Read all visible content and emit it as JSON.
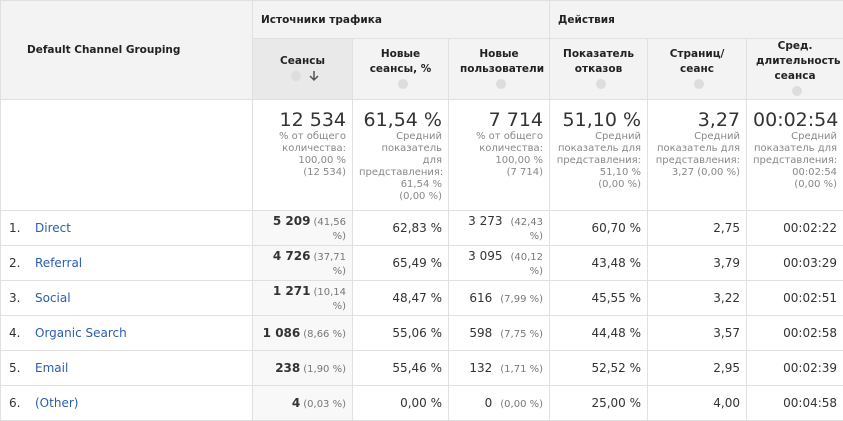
{
  "header": {
    "channel": "Default Channel Grouping",
    "groups": [
      "Источники трафика",
      "Действия"
    ],
    "columns": [
      "Сеансы",
      "Новые сеансы, %",
      "Новые пользователи",
      "Показатель отказов",
      "Страниц/сеанс",
      "Сред. длительность сеанса"
    ]
  },
  "totals": [
    {
      "value": "12 534",
      "note": [
        "% от общего",
        "количества:",
        "100,00 %",
        "(12 534)"
      ]
    },
    {
      "value": "61,54 %",
      "note": [
        "Средний",
        "показатель для",
        "представления:",
        "61,54 %",
        "(0,00 %)"
      ]
    },
    {
      "value": "7 714",
      "note": [
        "% от общего",
        "количества:",
        "100,00 %",
        "(7 714)"
      ]
    },
    {
      "value": "51,10 %",
      "note": [
        "Средний",
        "показатель для",
        "представления:",
        "51,10 %",
        "(0,00 %)"
      ]
    },
    {
      "value": "3,27",
      "note": [
        "Средний",
        "показатель для",
        "представления:",
        "3,27 (0,00 %)"
      ]
    },
    {
      "value": "00:02:54",
      "note": [
        "Средний",
        "показатель для",
        "представления:",
        "00:02:54",
        "(0,00 %)"
      ]
    }
  ],
  "rows": [
    {
      "index": "1.",
      "channel": "Direct",
      "sessions": "5 209",
      "sessions_pct": "(41,56 %)",
      "new_sessions": "62,83 %",
      "new_users": "3 273",
      "new_users_pct": "(42,43 %)",
      "bounce": "60,70 %",
      "pages": "2,75",
      "duration": "00:02:22"
    },
    {
      "index": "2.",
      "channel": "Referral",
      "sessions": "4 726",
      "sessions_pct": "(37,71 %)",
      "new_sessions": "65,49 %",
      "new_users": "3 095",
      "new_users_pct": "(40,12 %)",
      "bounce": "43,48 %",
      "pages": "3,79",
      "duration": "00:03:29"
    },
    {
      "index": "3.",
      "channel": "Social",
      "sessions": "1 271",
      "sessions_pct": "(10,14 %)",
      "new_sessions": "48,47 %",
      "new_users": "616",
      "new_users_pct": "(7,99 %)",
      "bounce": "45,55 %",
      "pages": "3,22",
      "duration": "00:02:51"
    },
    {
      "index": "4.",
      "channel": "Organic Search",
      "sessions": "1 086",
      "sessions_pct": "(8,66 %)",
      "new_sessions": "55,06 %",
      "new_users": "598",
      "new_users_pct": "(7,75 %)",
      "bounce": "44,48 %",
      "pages": "3,57",
      "duration": "00:02:58"
    },
    {
      "index": "5.",
      "channel": "Email",
      "sessions": "238",
      "sessions_pct": "(1,90 %)",
      "new_sessions": "55,46 %",
      "new_users": "132",
      "new_users_pct": "(1,71 %)",
      "bounce": "52,52 %",
      "pages": "2,95",
      "duration": "00:02:39"
    },
    {
      "index": "6.",
      "channel": "(Other)",
      "sessions": "4",
      "sessions_pct": "(0,03 %)",
      "new_sessions": "0,00 %",
      "new_users": "0",
      "new_users_pct": "(0,00 %)",
      "bounce": "25,00 %",
      "pages": "4,00",
      "duration": "00:04:58"
    }
  ]
}
